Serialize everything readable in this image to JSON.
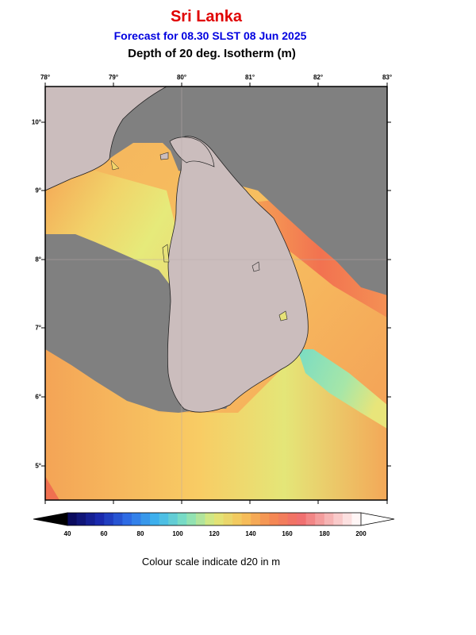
{
  "header": {
    "region": "Sri Lanka",
    "forecast": "Forecast for  08.30 SLST 08 Jun 2025",
    "variable": "Depth of 20 deg. Isotherm (m)"
  },
  "map": {
    "lon_labels": [
      "78°",
      "79°",
      "80°",
      "81°",
      "82°",
      "83°"
    ],
    "lat_labels": [
      "10°",
      "9°",
      "8°",
      "7°",
      "6°",
      "5°"
    ],
    "colors": {
      "land": "#cbbdbd",
      "no_data": "#808080",
      "coast": "#222222"
    }
  },
  "colorbar": {
    "ticks": [
      "40",
      "60",
      "80",
      "100",
      "120",
      "140",
      "160",
      "180",
      "200"
    ],
    "colors": [
      "#0b0b5e",
      "#1a2ab0",
      "#2f6fe8",
      "#3fb6ee",
      "#7fe0c0",
      "#dfe87a",
      "#f6c35a",
      "#f48a52",
      "#f06b6b",
      "#f6b2b2",
      "#fff6f6"
    ],
    "caption": "Colour scale indicate d20 in m"
  }
}
